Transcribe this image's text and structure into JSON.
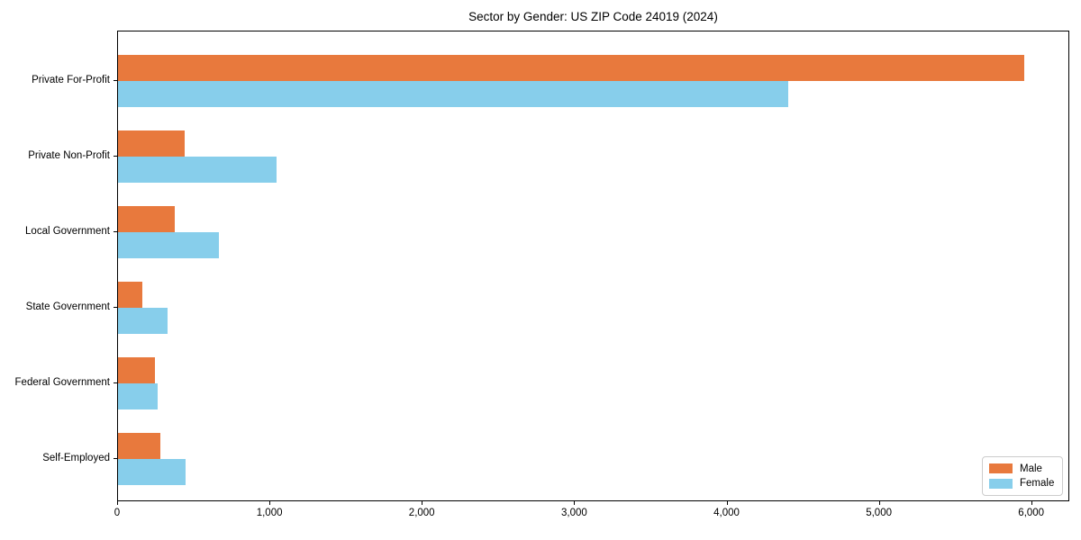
{
  "chart_data": {
    "type": "bar",
    "orientation": "horizontal",
    "title": "Sector by Gender: US ZIP Code 24019 (2024)",
    "categories": [
      "Private For-Profit",
      "Private Non-Profit",
      "Local Government",
      "State Government",
      "Federal Government",
      "Self-Employed"
    ],
    "series": [
      {
        "name": "Male",
        "color": "#e8793d",
        "values": [
          5950,
          440,
          370,
          160,
          240,
          280
        ]
      },
      {
        "name": "Female",
        "color": "#87ceeb",
        "values": [
          4400,
          1040,
          660,
          325,
          260,
          445
        ]
      }
    ],
    "xlabel": "",
    "ylabel": "",
    "xlim": [
      0,
      6250
    ],
    "xticks": [
      0,
      1000,
      2000,
      3000,
      4000,
      5000,
      6000
    ],
    "xtick_labels": [
      "0",
      "1,000",
      "2,000",
      "3,000",
      "4,000",
      "5,000",
      "6,000"
    ],
    "grid": false,
    "legend": {
      "position": "lower-right",
      "entries": [
        "Male",
        "Female"
      ]
    }
  },
  "colors": {
    "background": "#ffffff",
    "axis": "#000000",
    "legend_border": "#cccccc",
    "male": "#e8793d",
    "female": "#87ceeb"
  }
}
